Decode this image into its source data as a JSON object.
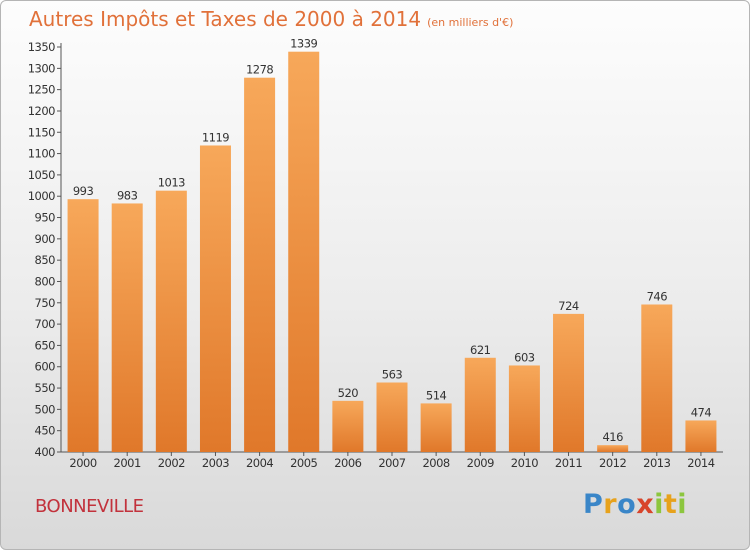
{
  "title": "Autres Impôts et Taxes de 2000 à 2014",
  "title_unit": "(en milliers d'€)",
  "location": "BONNEVILLE",
  "brand": "Proxiti",
  "colors": {
    "bar": "#f0903e",
    "title": "#e1713a",
    "location": "#c2323c"
  },
  "chart_data": {
    "type": "bar",
    "title": "Autres Impôts et Taxes de 2000 à 2014",
    "unit": "(en milliers d'€)",
    "categories": [
      "2000",
      "2001",
      "2002",
      "2003",
      "2004",
      "2005",
      "2006",
      "2007",
      "2008",
      "2009",
      "2010",
      "2011",
      "2012",
      "2013",
      "2014"
    ],
    "values": [
      993,
      983,
      1013,
      1119,
      1278,
      1339,
      520,
      563,
      514,
      621,
      603,
      724,
      416,
      746,
      474
    ],
    "ylim": [
      400,
      1350
    ],
    "yticks": [
      400,
      450,
      500,
      550,
      600,
      650,
      700,
      750,
      800,
      850,
      900,
      950,
      1000,
      1050,
      1100,
      1150,
      1200,
      1250,
      1300,
      1350
    ],
    "grid": false,
    "xlabel": "",
    "ylabel": ""
  }
}
